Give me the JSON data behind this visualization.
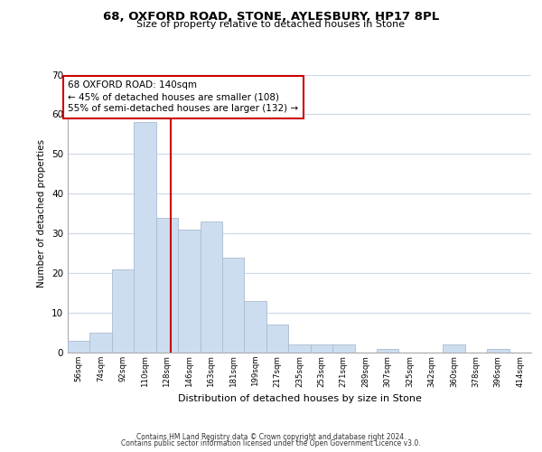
{
  "title_line1": "68, OXFORD ROAD, STONE, AYLESBURY, HP17 8PL",
  "title_line2": "Size of property relative to detached houses in Stone",
  "xlabel": "Distribution of detached houses by size in Stone",
  "ylabel": "Number of detached properties",
  "bin_labels": [
    "56sqm",
    "74sqm",
    "92sqm",
    "110sqm",
    "128sqm",
    "146sqm",
    "163sqm",
    "181sqm",
    "199sqm",
    "217sqm",
    "235sqm",
    "253sqm",
    "271sqm",
    "289sqm",
    "307sqm",
    "325sqm",
    "342sqm",
    "360sqm",
    "378sqm",
    "396sqm",
    "414sqm"
  ],
  "bar_heights": [
    3,
    5,
    21,
    58,
    34,
    31,
    33,
    24,
    13,
    7,
    2,
    2,
    2,
    0,
    1,
    0,
    0,
    2,
    0,
    1,
    0
  ],
  "bar_color": "#ccddf0",
  "bar_edge_color": "#aabbd0",
  "bin_values": [
    56,
    74,
    92,
    110,
    128,
    146,
    163,
    181,
    199,
    217,
    235,
    253,
    271,
    289,
    307,
    325,
    342,
    360,
    378,
    396,
    414
  ],
  "vline_value": 140,
  "vline_color": "#cc0000",
  "annotation_text": "68 OXFORD ROAD: 140sqm\n← 45% of detached houses are smaller (108)\n55% of semi-detached houses are larger (132) →",
  "annotation_box_edge": "#cc0000",
  "ylim": [
    0,
    70
  ],
  "yticks": [
    0,
    10,
    20,
    30,
    40,
    50,
    60,
    70
  ],
  "footer_line1": "Contains HM Land Registry data © Crown copyright and database right 2024.",
  "footer_line2": "Contains public sector information licensed under the Open Government Licence v3.0.",
  "background_color": "#ffffff",
  "grid_color": "#ccd9e8"
}
